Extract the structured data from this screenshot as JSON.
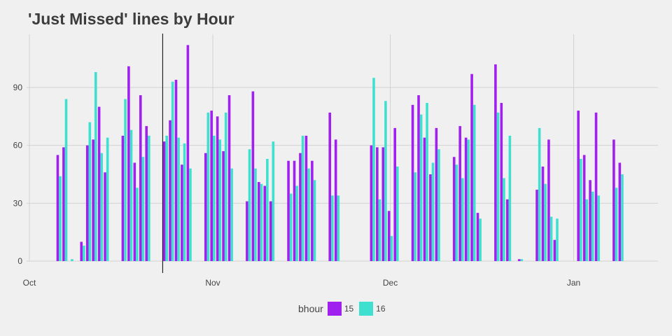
{
  "chart_data": {
    "type": "bar",
    "title": "'Just Missed' lines by Hour",
    "xlabel": "",
    "ylabel": "",
    "x_ticks": [
      "Oct",
      "Nov",
      "Dec",
      "Jan"
    ],
    "y_ticks": [
      0,
      30,
      60,
      90
    ],
    "ylim": [
      0,
      118
    ],
    "grid": true,
    "legend": {
      "title": "bhour",
      "position": "bottom"
    },
    "colors": {
      "15": "#a020f0",
      "16": "#40e0d0"
    },
    "marker_date": "2023-10-24",
    "series": [
      {
        "name": "15",
        "points": [
          [
            "2023-10-06",
            55
          ],
          [
            "2023-10-07",
            59
          ],
          [
            "2023-10-10",
            10
          ],
          [
            "2023-10-11",
            60
          ],
          [
            "2023-10-12",
            63
          ],
          [
            "2023-10-13",
            80
          ],
          [
            "2023-10-14",
            46
          ],
          [
            "2023-10-17",
            65
          ],
          [
            "2023-10-18",
            101
          ],
          [
            "2023-10-19",
            51
          ],
          [
            "2023-10-20",
            86
          ],
          [
            "2023-10-21",
            70
          ],
          [
            "2023-10-24",
            62
          ],
          [
            "2023-10-25",
            73
          ],
          [
            "2023-10-26",
            94
          ],
          [
            "2023-10-27",
            50
          ],
          [
            "2023-10-28",
            112
          ],
          [
            "2023-10-31",
            56
          ],
          [
            "2023-11-01",
            78
          ],
          [
            "2023-11-02",
            75
          ],
          [
            "2023-11-03",
            57
          ],
          [
            "2023-11-04",
            86
          ],
          [
            "2023-11-07",
            31
          ],
          [
            "2023-11-08",
            88
          ],
          [
            "2023-11-09",
            41
          ],
          [
            "2023-11-10",
            39
          ],
          [
            "2023-11-11",
            31
          ],
          [
            "2023-11-14",
            52
          ],
          [
            "2023-11-15",
            52
          ],
          [
            "2023-11-16",
            56
          ],
          [
            "2023-11-17",
            65
          ],
          [
            "2023-11-18",
            52
          ],
          [
            "2023-11-21",
            77
          ],
          [
            "2023-11-22",
            63
          ],
          [
            "2023-11-28",
            60
          ],
          [
            "2023-11-29",
            59
          ],
          [
            "2023-11-30",
            59
          ],
          [
            "2023-12-01",
            26
          ],
          [
            "2023-12-02",
            69
          ],
          [
            "2023-12-05",
            81
          ],
          [
            "2023-12-06",
            86
          ],
          [
            "2023-12-07",
            64
          ],
          [
            "2023-12-08",
            45
          ],
          [
            "2023-12-09",
            69
          ],
          [
            "2023-12-12",
            54
          ],
          [
            "2023-12-13",
            70
          ],
          [
            "2023-12-14",
            64
          ],
          [
            "2023-12-15",
            97
          ],
          [
            "2023-12-16",
            25
          ],
          [
            "2023-12-19",
            102
          ],
          [
            "2023-12-20",
            82
          ],
          [
            "2023-12-21",
            32
          ],
          [
            "2023-12-23",
            1
          ],
          [
            "2023-12-26",
            37
          ],
          [
            "2023-12-27",
            49
          ],
          [
            "2023-12-28",
            63
          ],
          [
            "2023-12-29",
            11
          ],
          [
            "2024-01-02",
            78
          ],
          [
            "2024-01-03",
            55
          ],
          [
            "2024-01-04",
            42
          ],
          [
            "2024-01-05",
            77
          ],
          [
            "2024-01-08",
            63
          ],
          [
            "2024-01-09",
            51
          ]
        ]
      },
      {
        "name": "16",
        "points": [
          [
            "2023-10-06",
            44
          ],
          [
            "2023-10-07",
            84
          ],
          [
            "2023-10-08",
            1
          ],
          [
            "2023-10-10",
            8
          ],
          [
            "2023-10-11",
            72
          ],
          [
            "2023-10-12",
            98
          ],
          [
            "2023-10-13",
            56
          ],
          [
            "2023-10-14",
            64
          ],
          [
            "2023-10-17",
            84
          ],
          [
            "2023-10-18",
            68
          ],
          [
            "2023-10-19",
            38
          ],
          [
            "2023-10-20",
            54
          ],
          [
            "2023-10-21",
            65
          ],
          [
            "2023-10-24",
            65
          ],
          [
            "2023-10-25",
            93
          ],
          [
            "2023-10-26",
            64
          ],
          [
            "2023-10-27",
            61
          ],
          [
            "2023-10-28",
            48
          ],
          [
            "2023-10-31",
            77
          ],
          [
            "2023-11-01",
            65
          ],
          [
            "2023-11-02",
            63
          ],
          [
            "2023-11-03",
            77
          ],
          [
            "2023-11-04",
            48
          ],
          [
            "2023-11-07",
            58
          ],
          [
            "2023-11-08",
            48
          ],
          [
            "2023-11-09",
            40
          ],
          [
            "2023-11-10",
            53
          ],
          [
            "2023-11-11",
            62
          ],
          [
            "2023-11-14",
            35
          ],
          [
            "2023-11-15",
            39
          ],
          [
            "2023-11-16",
            65
          ],
          [
            "2023-11-17",
            48
          ],
          [
            "2023-11-18",
            42
          ],
          [
            "2023-11-21",
            34
          ],
          [
            "2023-11-22",
            34
          ],
          [
            "2023-11-28",
            95
          ],
          [
            "2023-11-29",
            32
          ],
          [
            "2023-11-30",
            83
          ],
          [
            "2023-12-01",
            13
          ],
          [
            "2023-12-02",
            49
          ],
          [
            "2023-12-05",
            46
          ],
          [
            "2023-12-06",
            76
          ],
          [
            "2023-12-07",
            82
          ],
          [
            "2023-12-08",
            51
          ],
          [
            "2023-12-09",
            58
          ],
          [
            "2023-12-12",
            50
          ],
          [
            "2023-12-13",
            43
          ],
          [
            "2023-12-14",
            63
          ],
          [
            "2023-12-15",
            81
          ],
          [
            "2023-12-16",
            22
          ],
          [
            "2023-12-19",
            77
          ],
          [
            "2023-12-20",
            43
          ],
          [
            "2023-12-21",
            65
          ],
          [
            "2023-12-23",
            1
          ],
          [
            "2023-12-26",
            69
          ],
          [
            "2023-12-27",
            40
          ],
          [
            "2023-12-28",
            23
          ],
          [
            "2023-12-29",
            22
          ],
          [
            "2024-01-02",
            53
          ],
          [
            "2024-01-03",
            32
          ],
          [
            "2024-01-04",
            36
          ],
          [
            "2024-01-05",
            34
          ],
          [
            "2024-01-08",
            38
          ],
          [
            "2024-01-09",
            45
          ]
        ]
      }
    ]
  }
}
